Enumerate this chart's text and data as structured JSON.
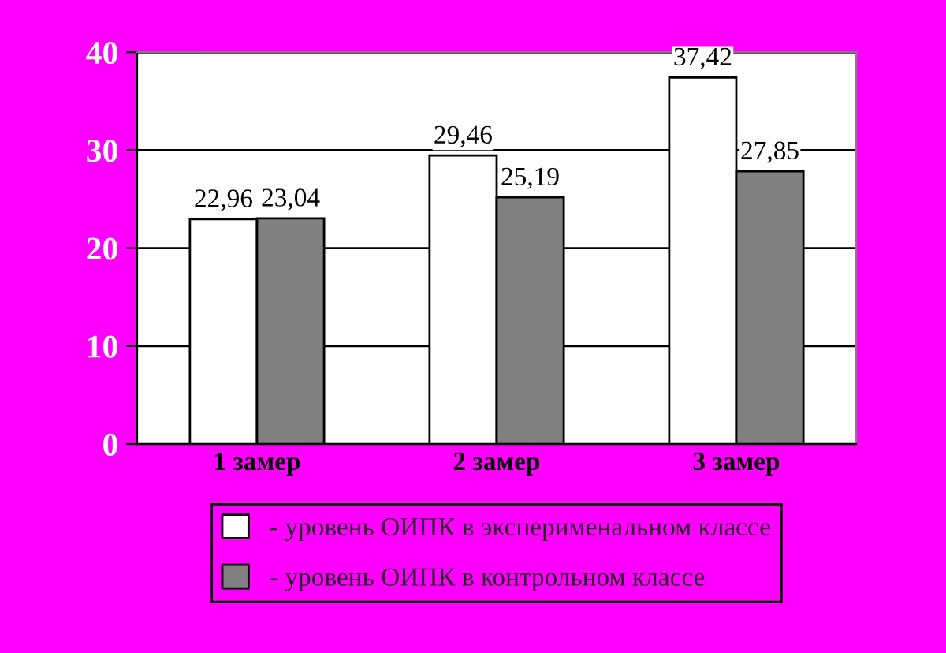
{
  "chart_data": {
    "type": "bar",
    "categories": [
      "1 замер",
      "2 замер",
      "3 замер"
    ],
    "series": [
      {
        "name": "- уровень ОИПК в эксперименальном классе",
        "color": "#ffffff",
        "values": [
          22.96,
          29.46,
          37.42
        ],
        "value_labels": [
          "22,96",
          "29,46",
          "37,42"
        ]
      },
      {
        "name": "- уровень ОИПК в контрольном классе",
        "color": "#808080",
        "values": [
          23.04,
          25.19,
          27.85
        ],
        "value_labels": [
          "23,04",
          "25,19",
          "27,85"
        ]
      }
    ],
    "ylim": [
      0,
      40
    ],
    "yticks": [
      0,
      10,
      20,
      30,
      40
    ],
    "grid": "y",
    "legend": "bottom"
  }
}
